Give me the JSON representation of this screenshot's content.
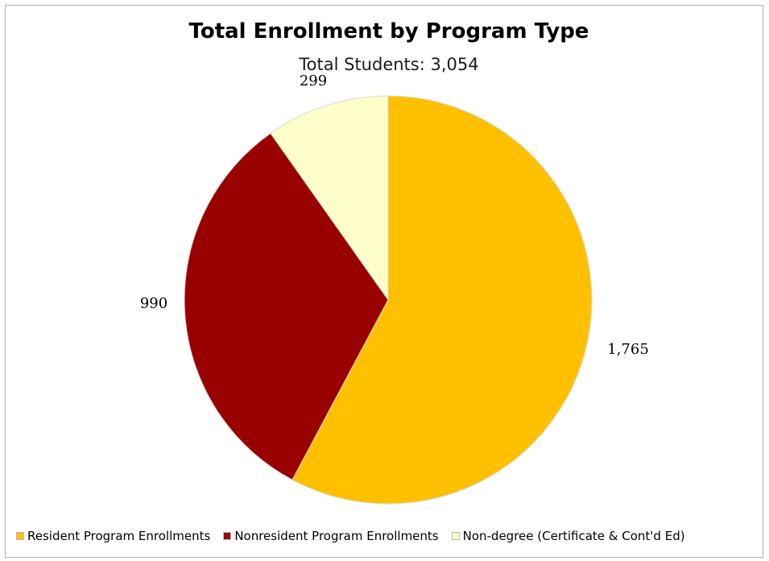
{
  "chart_data": {
    "type": "pie",
    "title": "Total Enrollment by Program Type",
    "subtitle": "Total Students:  3,054",
    "slices": [
      {
        "label": "Resident Program Enrollments",
        "value": 1765,
        "value_label": "1,765",
        "color": "#ffc000"
      },
      {
        "label": "Nonresident Program Enrollments",
        "value": 990,
        "value_label": "990",
        "color": "#990000"
      },
      {
        "label": "Non-degree (Certificate & Cont'd Ed)",
        "value": 299,
        "value_label": "299",
        "color": "#ffffcc"
      }
    ],
    "legend_position": "bottom"
  }
}
